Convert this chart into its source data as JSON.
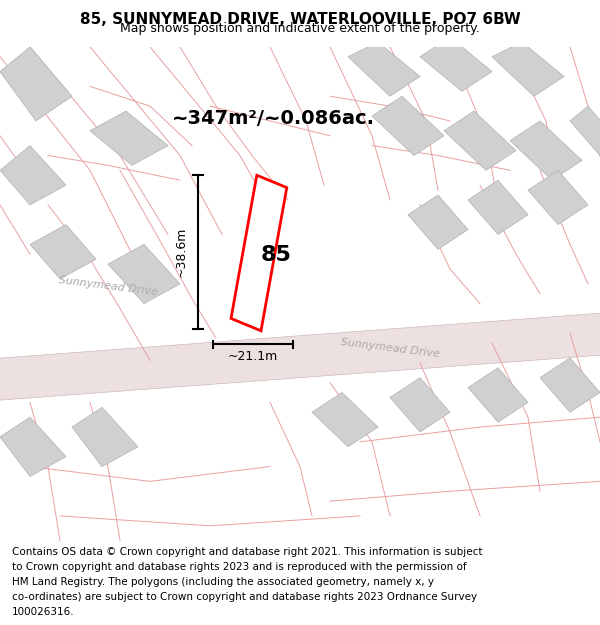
{
  "title": "85, SUNNYMEAD DRIVE, WATERLOOVILLE, PO7 6BW",
  "subtitle": "Map shows position and indicative extent of the property.",
  "area_label": "~347m²/~0.086ac.",
  "property_number": "85",
  "width_label": "~21.1m",
  "height_label": "~38.6m",
  "footer_lines": [
    "Contains OS data © Crown copyright and database right 2021. This information is subject",
    "to Crown copyright and database rights 2023 and is reproduced with the permission of",
    "HM Land Registry. The polygons (including the associated geometry, namely x, y",
    "co-ordinates) are subject to Crown copyright and database rights 2023 Ordnance Survey",
    "100026316."
  ],
  "bg_color": "#f8f0f0",
  "road_fill": "#ede0e0",
  "road_edge": "#d0b8b8",
  "plot_color": "#ff0000",
  "building_color": "#d0d0d0",
  "building_edge": "#b0b0b0",
  "road_line_color": "#e8a0a0",
  "road_label_color": "#aaaaaa",
  "title_fontsize": 11,
  "subtitle_fontsize": 9,
  "footer_fontsize": 7.5,
  "area_fontsize": 14,
  "number_fontsize": 16,
  "dim_fontsize": 9,
  "road_label_fontsize": 8
}
